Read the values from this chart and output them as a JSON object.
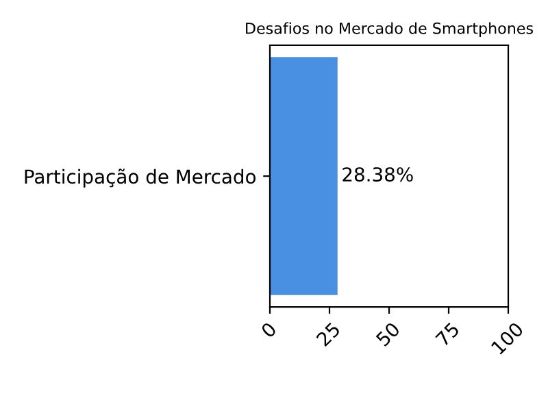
{
  "chart_data": {
    "type": "bar",
    "orientation": "horizontal",
    "title": "Desafios no Mercado de Smartphones",
    "categories": [
      "Participação de Mercado"
    ],
    "values": [
      28.38
    ],
    "color": "#4a90e2",
    "value_labels": [
      "28.38%"
    ],
    "xlim": [
      0,
      100
    ],
    "xticks": [
      0,
      25,
      50,
      75,
      100
    ],
    "grid": false
  }
}
